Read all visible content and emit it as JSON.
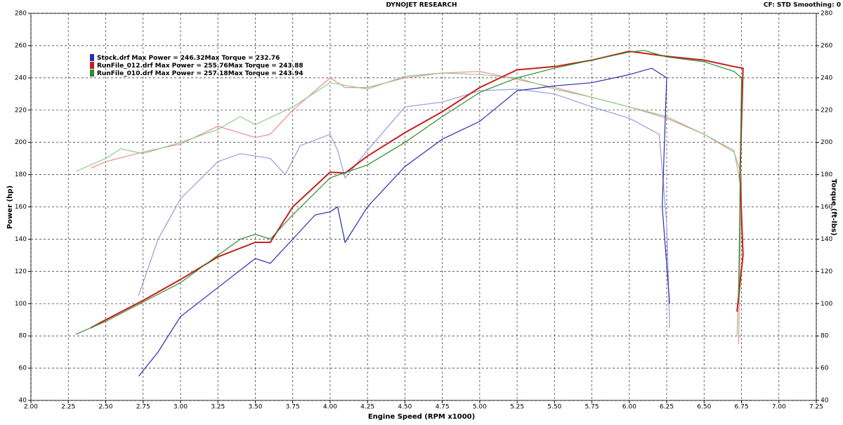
{
  "chart_data": {
    "type": "line",
    "title": "DYNOJET RESEARCH",
    "subtitle": "CF: STD Smoothing: 0",
    "x_label": "Engine Speed (RPM x1000)",
    "y_label": "Power (hp)",
    "y2_label": "Torque (ft-lbs)",
    "xlim": [
      2,
      7.25
    ],
    "xticks": [
      {
        "value": 2,
        "label": "2.00"
      },
      2.25,
      {
        "value": 2.5,
        "label": "2.50"
      },
      2.75,
      {
        "value": 3,
        "label": "3.00"
      },
      3.25,
      {
        "value": 3.5,
        "label": "3.50"
      },
      3.75,
      {
        "value": 4,
        "label": "4.00"
      },
      4.25,
      {
        "value": 4.5,
        "label": "4.50"
      },
      4.75,
      {
        "value": 5,
        "label": "5.00"
      },
      5.25,
      {
        "value": 5.5,
        "label": "5.50"
      },
      5.75,
      {
        "value": 6,
        "label": "6.00"
      },
      6.25,
      {
        "value": 6.5,
        "label": "6.50"
      },
      6.75,
      {
        "value": 7,
        "label": "7.00"
      },
      7.25
    ],
    "ylim": [
      40,
      280
    ],
    "yticks": [
      40,
      60,
      80,
      100,
      120,
      140,
      160,
      180,
      200,
      220,
      240,
      260,
      280
    ],
    "y2lim": [
      40,
      280
    ],
    "y2ticks": [
      40,
      60,
      80,
      100,
      120,
      140,
      160,
      180,
      200,
      220,
      240,
      260,
      280
    ],
    "grid": true,
    "series": [
      {
        "name": "Stock.drf",
        "color": "#2b2bb0",
        "torque_color": "#9a9ad8",
        "max_power_label": "Max Power =",
        "max_power": 246.32,
        "max_torque_label": "Max Torque =",
        "max_torque": 232.76,
        "x": [
          2.72,
          2.85,
          3.0,
          3.25,
          3.5,
          3.6,
          3.75,
          3.9,
          4.0,
          4.05,
          4.1,
          4.25,
          4.5,
          4.75,
          5.0,
          5.25,
          5.5,
          5.75,
          6.0,
          6.15,
          6.25,
          6.22,
          6.27
        ],
        "values": [
          55,
          70,
          92,
          110,
          128,
          125,
          140,
          155,
          157,
          160,
          138,
          160,
          185,
          202,
          213,
          232,
          235,
          237,
          242,
          246,
          240,
          160,
          100
        ],
        "torque_x": [
          2.72,
          2.85,
          3.0,
          3.25,
          3.4,
          3.6,
          3.7,
          3.8,
          4.0,
          4.05,
          4.1,
          4.25,
          4.5,
          4.75,
          5.0,
          5.25,
          5.5,
          5.75,
          6.0,
          6.2,
          6.25,
          6.27
        ],
        "torque_values": [
          105,
          140,
          165,
          188,
          193,
          190,
          180,
          198,
          205,
          195,
          178,
          195,
          222,
          225,
          232,
          233,
          230,
          222,
          215,
          205,
          150,
          85
        ]
      },
      {
        "name": "RunFile_012.drf",
        "color": "#c81e1e",
        "torque_color": "#ec8c8c",
        "max_power_label": "Max Power =",
        "max_power": 255.76,
        "max_torque_label": "Max Torque =",
        "max_torque": 243.88,
        "x": [
          2.4,
          2.5,
          2.75,
          3.0,
          3.25,
          3.5,
          3.6,
          3.75,
          4.0,
          4.1,
          4.25,
          4.5,
          4.75,
          5.0,
          5.25,
          5.5,
          5.75,
          6.0,
          6.25,
          6.5,
          6.7,
          6.76,
          6.74,
          6.76,
          6.72
        ],
        "values": [
          85,
          90,
          102,
          115,
          129,
          138,
          138,
          160,
          181.5,
          181,
          191.5,
          206,
          219,
          234,
          245,
          247,
          251,
          256.5,
          253.4,
          251,
          247,
          246,
          180,
          130,
          95
        ],
        "torque_x": [
          2.4,
          2.5,
          2.75,
          3.0,
          3.25,
          3.5,
          3.6,
          3.75,
          4.0,
          4.1,
          4.25,
          4.5,
          4.75,
          5.0,
          5.25,
          5.5,
          5.75,
          6.0,
          6.25,
          6.5,
          6.7,
          6.75,
          6.73
        ],
        "torque_values": [
          184,
          188,
          194,
          199,
          210,
          203,
          205,
          220,
          240,
          234,
          234,
          240,
          243,
          244,
          239,
          234,
          228,
          222,
          215,
          205,
          194,
          180,
          75
        ]
      },
      {
        "name": "RunFile_010.drf",
        "color": "#2e8b2e",
        "torque_color": "#8fcc8f",
        "max_power_label": "Max Power =",
        "max_power": 257.18,
        "max_torque_label": "Max Torque =",
        "max_torque": 243.94,
        "x": [
          2.3,
          2.5,
          2.75,
          3.0,
          3.25,
          3.4,
          3.5,
          3.6,
          3.75,
          4.0,
          4.25,
          4.5,
          4.75,
          5.0,
          5.25,
          5.5,
          5.75,
          6.0,
          6.1,
          6.25,
          6.5,
          6.7,
          6.75,
          6.73
        ],
        "values": [
          81,
          89,
          101,
          113,
          130,
          140,
          143,
          140,
          155,
          178,
          186,
          200,
          216,
          231,
          240,
          246,
          251,
          256,
          257,
          253,
          250,
          244,
          240,
          100
        ],
        "torque_x": [
          2.3,
          2.5,
          2.6,
          2.75,
          3.0,
          3.25,
          3.4,
          3.5,
          3.75,
          4.0,
          4.25,
          4.5,
          4.75,
          5.0,
          5.25,
          5.5,
          5.75,
          6.0,
          6.25,
          6.5,
          6.7,
          6.75,
          6.72
        ],
        "torque_values": [
          182,
          190,
          196,
          193,
          200,
          208,
          216,
          211,
          222,
          237,
          233,
          241,
          243,
          242,
          240,
          233,
          228,
          222,
          216,
          205,
          195,
          170,
          80
        ]
      }
    ]
  }
}
